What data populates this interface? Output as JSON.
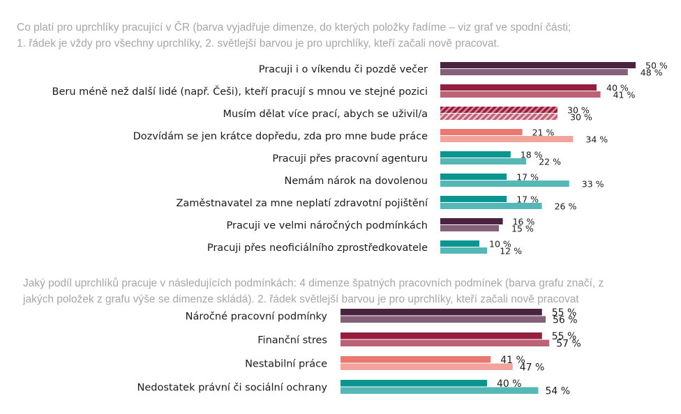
{
  "captions": {
    "top_line1": "Co platí pro uprchlíky pracující v ČR (barva vyjadřuje dimenze, do kterých položky řadíme – viz graf ve spodní části;",
    "top_line2": "1. řádek je vždy pro všechny uprchlíky, 2. světlejší barvou je pro uprchlíky, kteří začali nově pracovat.",
    "bottom_line1": "Jaký podíl uprchlíků pracuje v následujících podmínkách: 4 dimenze špatných pracovních podmínek (barva grafu značí, z",
    "bottom_line2": "jakých položek z grafu výše se dimenze skládá). 2. řádek světlejší barvou je pro uprchlíky, kteří začali nově pracovat"
  },
  "colors": {
    "plum_dark": "#4a2340",
    "plum_light": "#866078",
    "crimson_dark": "#951d3e",
    "crimson_light": "#bc6277",
    "salmon_dark": "#ea7870",
    "salmon_light": "#f2a39c",
    "teal_dark": "#0a9591",
    "teal_light": "#55b8b7"
  },
  "chart_data": [
    {
      "type": "bar",
      "orientation": "horizontal",
      "value_unit": "%",
      "categories": [
        "Pracuji i o víkendu či pozdě večer",
        "Beru méně než další lidé (např. Češi), kteří pracují s mnou ve stejné pozici",
        "Musím dělat více prací, abych se uživil/a",
        "Dozvídám se jen krátce dopředu, zda pro mne bude práce",
        "Pracuji přes pracovní agenturu",
        "Nemám nárok na dovolenou",
        "Zaměstnavatel za mne neplatí zdravotní pojištění",
        "Pracuji ve velmi náročných podmínkách",
        "Pracuji přes neoficiálního zprostředkovatele"
      ],
      "series": [
        {
          "values": [
            50,
            40,
            30,
            21,
            18,
            17,
            17,
            16,
            10
          ]
        },
        {
          "values": [
            48,
            41,
            30,
            34,
            22,
            33,
            26,
            15,
            12
          ]
        }
      ],
      "value_labels": [
        [
          "50 %",
          "40 %",
          "30 %",
          "21 %",
          "18 %",
          "17 %",
          "17 %",
          "16 %",
          "10 %"
        ],
        [
          "48 %",
          "41 %",
          "30 %",
          "34 %",
          "22 %",
          "33 %",
          "26 %",
          "15 %",
          "12 %"
        ]
      ],
      "dimension_colors": [
        "plum",
        "crimson",
        "crimson-hatched",
        "salmon",
        "teal",
        "teal",
        "teal",
        "plum",
        "teal"
      ]
    },
    {
      "type": "bar",
      "orientation": "horizontal",
      "value_unit": "%",
      "categories": [
        "Náročné pracovní podmínky",
        "Finanční stres",
        "Nestabilní práce",
        "Nedostatek právní či sociální ochrany"
      ],
      "series": [
        {
          "values": [
            55,
            55,
            41,
            40
          ]
        },
        {
          "values": [
            56,
            57,
            47,
            54
          ]
        }
      ],
      "value_labels": [
        [
          "55 %",
          "55 %",
          "41 %",
          "40 %"
        ],
        [
          "56 %",
          "57 %",
          "47 %",
          "54 %"
        ]
      ],
      "dimension_colors": [
        "plum",
        "crimson",
        "salmon",
        "teal"
      ]
    }
  ]
}
